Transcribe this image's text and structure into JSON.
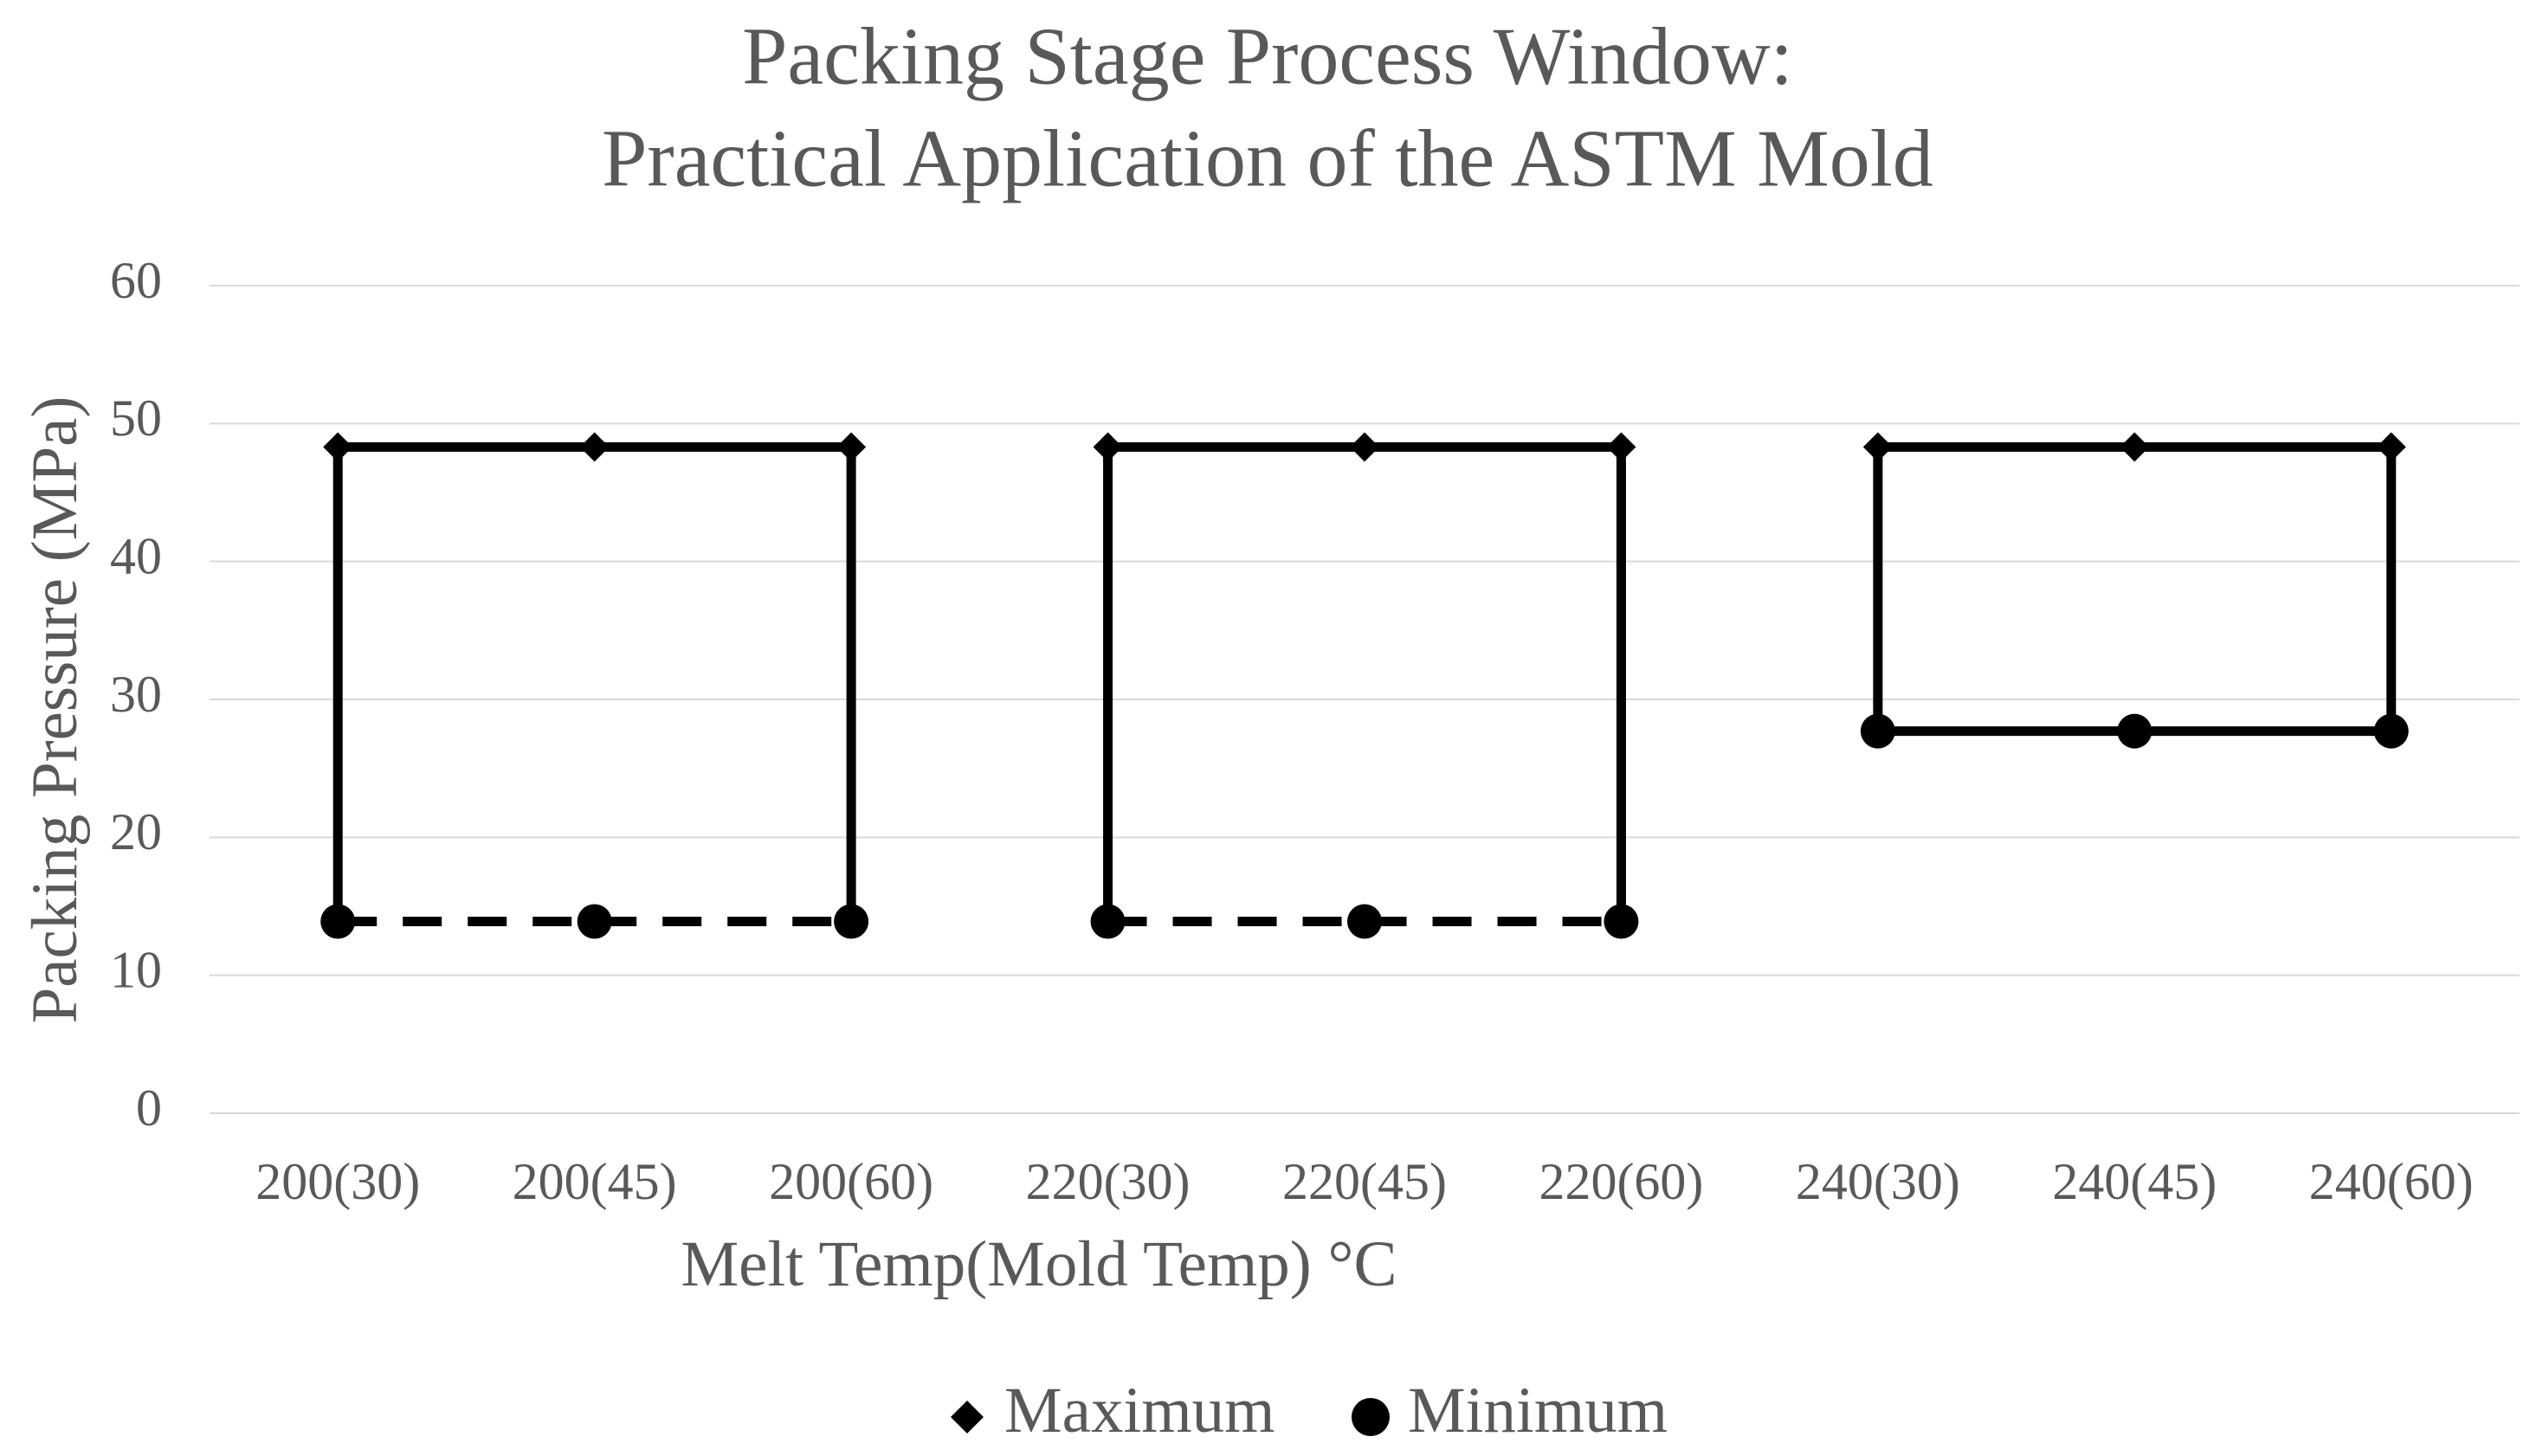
{
  "chart_data": {
    "type": "line",
    "title": [
      "Packing Stage Process Window:",
      "Practical Application of the ASTM Mold"
    ],
    "x_label": "Melt Temp(Mold Temp) °C",
    "y_label": "Packing Pressure (MPa)",
    "categories": [
      "200(30)",
      "200(45)",
      "200(60)",
      "220(30)",
      "220(45)",
      "220(60)",
      "240(30)",
      "240(45)",
      "240(60)"
    ],
    "group_size": 3,
    "series": [
      {
        "name": "Maximum",
        "color": "#000000",
        "marker": "diamond",
        "values": [
          48.3,
          48.3,
          48.3,
          48.3,
          48.3,
          48.3,
          48.3,
          48.3,
          48.3
        ]
      },
      {
        "name": "Minimum",
        "color": "#000000",
        "marker": "circle",
        "dashed_groups": [
          true,
          true,
          false
        ],
        "values": [
          13.9,
          13.9,
          13.9,
          13.9,
          13.9,
          13.9,
          27.7,
          27.7,
          27.7
        ]
      }
    ],
    "ylim": [
      0,
      60
    ],
    "yticks": [
      0,
      10,
      20,
      30,
      40,
      50,
      60
    ],
    "grid": true,
    "legend": "bottom"
  }
}
